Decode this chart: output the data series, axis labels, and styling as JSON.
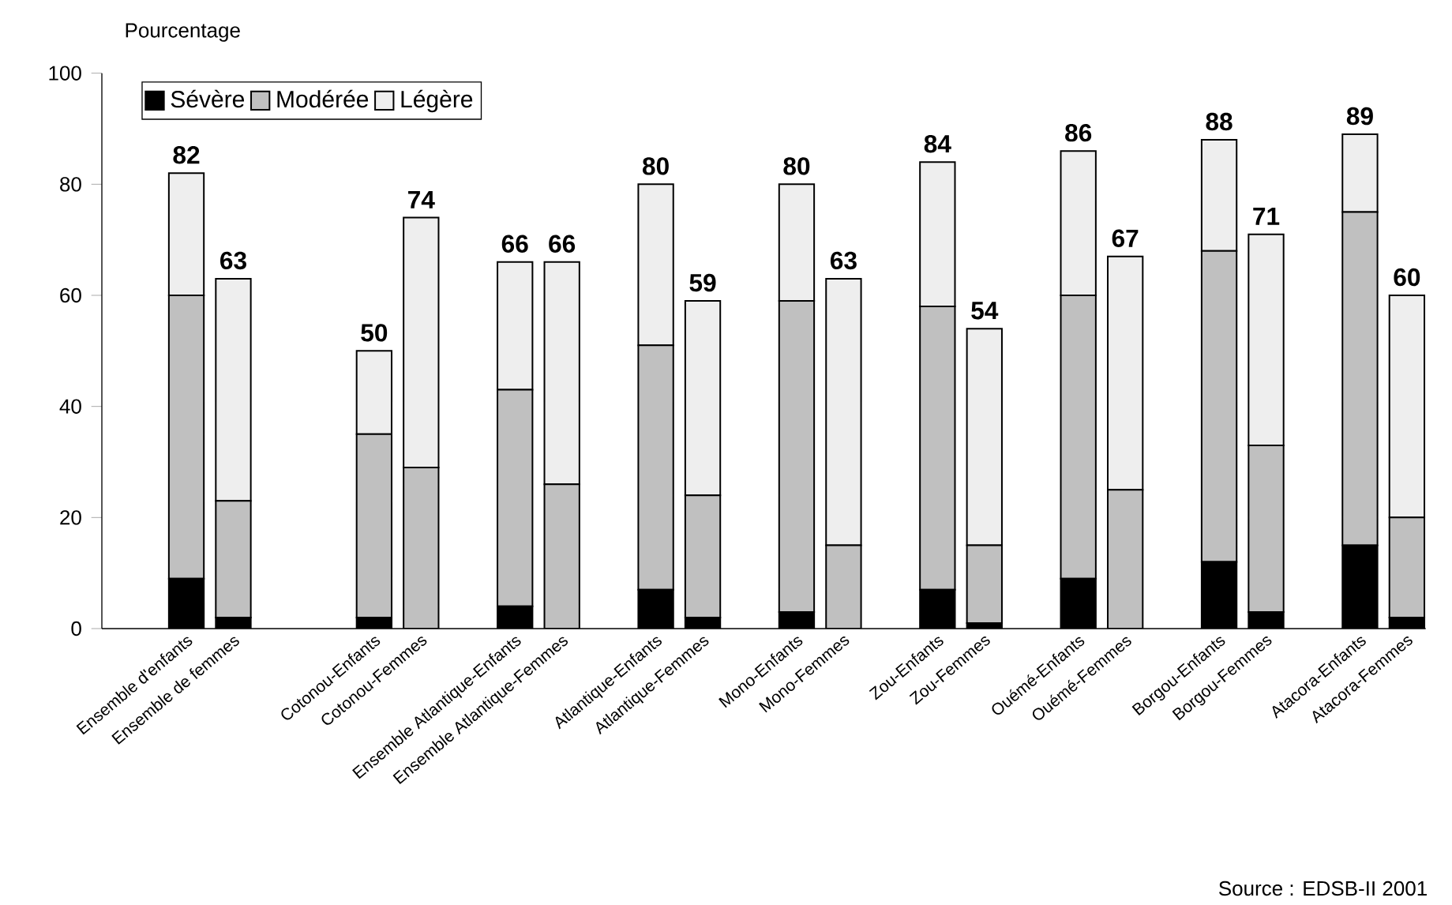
{
  "chart_data": {
    "type": "bar",
    "stacked": true,
    "ylabel": "Pourcentage",
    "categories": [
      "Ensemble d'enfants",
      "Ensemble de femmes",
      null,
      null,
      "Cotonou-Enfants",
      "Cotonou-Femmes",
      null,
      "Ensemble Atlantique-Enfants",
      "Ensemble Atlantique-Femmes",
      null,
      "Atlantique-Enfants",
      "Atlantique-Femmes",
      null,
      "Mono-Enfants",
      "Mono-Femmes",
      null,
      "Zou-Enfants",
      "Zou-Femmes",
      null,
      "Ouémé-Enfants",
      "Ouémé-Femmes",
      null,
      "Borgou-Enfants",
      "Borgou-Femmes",
      null,
      "Atacora-Enfants",
      "Atacora-Femmes"
    ],
    "series": [
      {
        "name": "Sévère",
        "color": "#000000",
        "values": [
          9,
          2,
          null,
          null,
          2,
          0,
          null,
          4,
          0,
          null,
          7,
          2,
          null,
          3,
          0,
          null,
          7,
          1,
          null,
          9,
          0,
          null,
          12,
          3,
          null,
          15,
          2
        ]
      },
      {
        "name": "Modérée",
        "color": "#c0c0c0",
        "values": [
          51,
          21,
          null,
          null,
          33,
          29,
          null,
          39,
          26,
          null,
          44,
          22,
          null,
          56,
          15,
          null,
          51,
          14,
          null,
          51,
          25,
          null,
          56,
          30,
          null,
          60,
          18
        ]
      },
      {
        "name": "Légère",
        "color": "#eeeeee",
        "values": [
          22,
          40,
          null,
          null,
          15,
          45,
          null,
          23,
          40,
          null,
          29,
          35,
          null,
          21,
          48,
          null,
          26,
          39,
          null,
          26,
          42,
          null,
          20,
          38,
          null,
          14,
          40
        ]
      }
    ],
    "totals": [
      "82",
      "63",
      null,
      null,
      "50",
      "74",
      null,
      "66",
      "66",
      null,
      "80",
      "59",
      null,
      "80",
      "63",
      null,
      "84",
      "54",
      null,
      "86",
      "67",
      null,
      "88",
      "71",
      null,
      "89",
      "60"
    ],
    "ylim": [
      0,
      100
    ],
    "yticks": [
      0,
      20,
      40,
      60,
      80,
      100
    ],
    "grid": false,
    "legend": "top left",
    "annotations": [
      "Source : EDSB-II 2001"
    ]
  }
}
